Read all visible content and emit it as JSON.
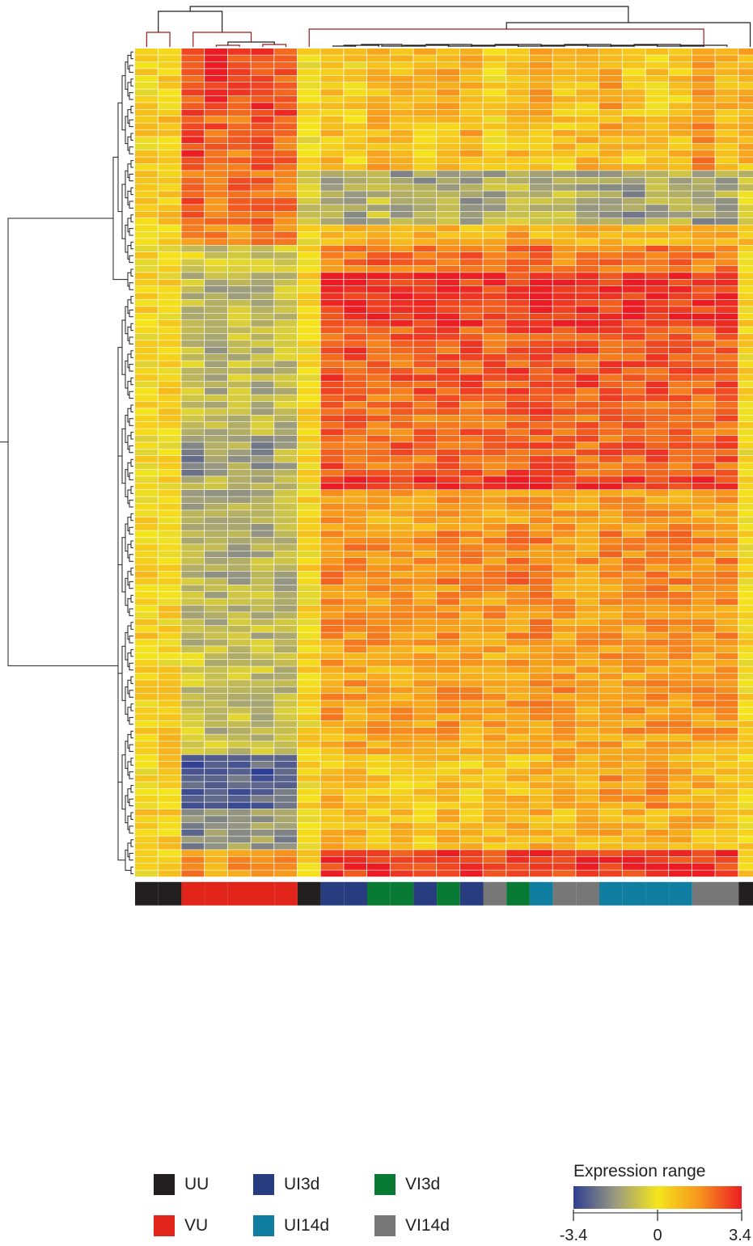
{
  "chart_data": {
    "type": "heatmap",
    "title": "",
    "colorbar": {
      "title": "Expression range",
      "min": -3.4,
      "mid": 0,
      "max": 3.4,
      "ticks": [
        "-3.4",
        "0",
        "3.4"
      ],
      "colors": [
        "#2f3f93",
        "#9a9a80",
        "#f5e51c",
        "#f7941d",
        "#ec1c24"
      ]
    },
    "row_dendrogram": true,
    "column_dendrogram": true,
    "groups": [
      {
        "label": "UU",
        "color": "#231f20"
      },
      {
        "label": "VU",
        "color": "#e1251b"
      },
      {
        "label": "UI3d",
        "color": "#283c80"
      },
      {
        "label": "UI14d",
        "color": "#0f7ea0"
      },
      {
        "label": "VI3d",
        "color": "#087a33"
      },
      {
        "label": "VI14d",
        "color": "#777777"
      }
    ],
    "column_groups": [
      "UU",
      "UU",
      "VU",
      "VU",
      "VU",
      "VU",
      "VU",
      "UU",
      "UI3d",
      "UI3d",
      "VI3d",
      "VI3d",
      "UI3d",
      "VI3d",
      "UI3d",
      "VI14d",
      "VI3d",
      "UI14d",
      "VI14d",
      "VI14d",
      "UI14d",
      "UI14d",
      "UI14d",
      "UI14d",
      "VI14d",
      "VI14d",
      "UU"
    ],
    "row_blocks": [
      {
        "rows": 10,
        "values": [
          0.2,
          0.5,
          2.6,
          3.0,
          2.8,
          3.0,
          2.7,
          0.1,
          0.6,
          0.4,
          1.0,
          0.8,
          1.0,
          1.1,
          1.0,
          0.4,
          0.9,
          1.2,
          0.6,
          0.8,
          1.4,
          0.6,
          0.5,
          0.7,
          1.6,
          1.1,
          1.0
        ]
      },
      {
        "rows": 8,
        "values": [
          0.4,
          0.7,
          2.8,
          2.4,
          2.1,
          2.7,
          2.2,
          0.0,
          0.8,
          0.5,
          1.2,
          0.9,
          0.7,
          0.9,
          1.1,
          0.3,
          0.9,
          1.0,
          0.8,
          1.0,
          1.2,
          0.7,
          0.6,
          0.9,
          1.8,
          0.9,
          0.9
        ]
      },
      {
        "rows": 8,
        "values": [
          0.3,
          0.8,
          2.4,
          2.1,
          2.3,
          2.2,
          2.1,
          -0.8,
          -1.4,
          -1.5,
          -1.0,
          -1.5,
          -1.5,
          -1.1,
          -1.7,
          -1.3,
          -0.9,
          -1.3,
          -1.1,
          -1.4,
          -1.6,
          -1.8,
          -1.3,
          -1.2,
          -1.6,
          -1.4,
          -0.7
        ]
      },
      {
        "rows": 3,
        "values": [
          0.2,
          0.6,
          2.0,
          1.8,
          1.7,
          1.9,
          1.8,
          0.1,
          1.1,
          1.3,
          1.2,
          1.3,
          1.0,
          1.2,
          1.0,
          1.2,
          1.4,
          1.1,
          1.0,
          1.2,
          1.3,
          1.1,
          1.0,
          1.3,
          1.2,
          1.1,
          0.9
        ]
      },
      {
        "rows": 4,
        "values": [
          0.3,
          0.2,
          -0.4,
          -0.8,
          -0.7,
          -0.9,
          -0.6,
          0.2,
          2.1,
          2.2,
          2.3,
          2.1,
          2.2,
          2.2,
          2.2,
          2.1,
          2.2,
          2.3,
          2.0,
          2.2,
          2.2,
          2.1,
          2.2,
          2.1,
          2.0,
          2.1,
          0.3
        ]
      },
      {
        "rows": 8,
        "values": [
          0.3,
          0.3,
          -0.9,
          -1.3,
          -1.0,
          -1.3,
          -1.0,
          0.2,
          3.1,
          3.1,
          3.0,
          3.0,
          2.9,
          3.1,
          3.0,
          3.0,
          3.0,
          3.1,
          3.0,
          3.0,
          3.1,
          3.1,
          3.1,
          3.1,
          3.1,
          3.0,
          0.3
        ]
      },
      {
        "rows": 10,
        "values": [
          0.2,
          0.4,
          -0.7,
          -1.2,
          -0.9,
          -1.2,
          -0.9,
          0.2,
          2.6,
          2.6,
          2.5,
          2.4,
          2.4,
          2.5,
          2.5,
          2.4,
          2.6,
          2.7,
          2.7,
          2.6,
          2.6,
          2.6,
          2.7,
          2.6,
          2.4,
          2.5,
          0.3
        ]
      },
      {
        "rows": 6,
        "values": [
          0.3,
          0.5,
          -0.8,
          -1.1,
          -1.1,
          -1.1,
          -1.0,
          0.2,
          2.4,
          2.5,
          2.3,
          2.3,
          2.2,
          2.4,
          2.3,
          2.2,
          2.3,
          2.5,
          2.3,
          2.2,
          2.4,
          2.3,
          2.4,
          2.4,
          2.2,
          2.3,
          0.2
        ]
      },
      {
        "rows": 6,
        "values": [
          0.1,
          0.3,
          -2.0,
          -1.7,
          -1.5,
          -1.8,
          -1.3,
          0.1,
          2.5,
          2.4,
          2.3,
          2.4,
          2.2,
          2.5,
          2.4,
          2.3,
          2.6,
          2.5,
          2.4,
          2.3,
          2.4,
          2.4,
          2.5,
          2.4,
          2.3,
          2.4,
          0.2
        ]
      },
      {
        "rows": 2,
        "values": [
          0.2,
          0.3,
          -1.2,
          -1.3,
          -1.4,
          -1.2,
          -1.1,
          0.2,
          3.2,
          3.2,
          3.1,
          3.0,
          3.1,
          3.2,
          3.0,
          3.1,
          3.2,
          3.1,
          3.2,
          3.2,
          3.1,
          3.2,
          3.1,
          3.2,
          3.1,
          3.0,
          0.2
        ]
      },
      {
        "rows": 6,
        "values": [
          0.3,
          0.4,
          -1.5,
          -1.3,
          -1.4,
          -1.6,
          -1.2,
          0.2,
          1.6,
          1.5,
          1.3,
          1.4,
          1.2,
          1.5,
          1.5,
          1.3,
          1.5,
          1.6,
          1.4,
          1.4,
          1.5,
          1.5,
          1.6,
          1.5,
          1.4,
          1.5,
          0.2
        ]
      },
      {
        "rows": 8,
        "values": [
          0.3,
          0.2,
          -0.8,
          -1.3,
          -1.6,
          -1.2,
          -1.2,
          0.2,
          1.8,
          1.9,
          1.7,
          1.8,
          1.6,
          1.9,
          1.8,
          1.8,
          2.0,
          1.9,
          1.7,
          1.6,
          1.9,
          1.8,
          1.9,
          1.8,
          1.8,
          1.8,
          0.2
        ]
      },
      {
        "rows": 9,
        "values": [
          0.4,
          0.3,
          -1.0,
          -1.2,
          -1.2,
          -1.0,
          -1.1,
          0.2,
          1.6,
          1.6,
          1.5,
          1.6,
          1.5,
          1.7,
          1.6,
          1.5,
          1.6,
          1.7,
          1.5,
          1.6,
          1.6,
          1.5,
          1.7,
          1.6,
          1.6,
          1.6,
          0.3
        ]
      },
      {
        "rows": 5,
        "values": [
          0.3,
          0.3,
          -0.7,
          -1.0,
          -0.8,
          -0.9,
          -1.1,
          0.2,
          1.3,
          1.3,
          1.1,
          1.2,
          1.1,
          1.3,
          1.4,
          1.2,
          1.3,
          1.4,
          1.4,
          1.3,
          1.5,
          1.3,
          1.4,
          1.4,
          1.3,
          1.3,
          0.3
        ]
      },
      {
        "rows": 8,
        "values": [
          0.3,
          0.4,
          -0.8,
          -1.0,
          -0.9,
          -1.0,
          -1.0,
          0.2,
          1.5,
          1.5,
          1.4,
          1.4,
          1.3,
          1.5,
          1.5,
          1.4,
          1.5,
          1.6,
          1.6,
          1.5,
          1.6,
          1.5,
          1.6,
          1.6,
          1.5,
          1.5,
          0.3
        ]
      },
      {
        "rows": 3,
        "values": [
          0.3,
          0.6,
          -0.5,
          -0.9,
          -0.7,
          -0.8,
          -0.6,
          0.2,
          1.2,
          1.3,
          1.1,
          1.2,
          1.0,
          1.2,
          1.2,
          1.1,
          1.3,
          1.3,
          1.2,
          1.3,
          1.2,
          1.2,
          1.3,
          1.2,
          1.2,
          1.2,
          0.3
        ]
      },
      {
        "rows": 8,
        "values": [
          0.2,
          0.4,
          -2.7,
          -2.9,
          -2.9,
          -2.8,
          -2.6,
          0.2,
          0.9,
          0.8,
          0.7,
          0.6,
          0.7,
          0.9,
          0.5,
          0.8,
          0.9,
          1.0,
          1.2,
          1.2,
          1.5,
          1.4,
          1.7,
          1.3,
          1.1,
          1.0,
          0.3
        ]
      },
      {
        "rows": 6,
        "values": [
          0.4,
          0.5,
          -2.2,
          -1.5,
          -1.5,
          -1.6,
          -1.9,
          0.2,
          0.9,
          1.0,
          0.8,
          0.8,
          0.7,
          0.9,
          0.9,
          0.8,
          1.0,
          1.1,
          1.0,
          1.0,
          1.2,
          1.1,
          1.1,
          1.1,
          1.0,
          1.0,
          0.3
        ]
      },
      {
        "rows": 4,
        "values": [
          0.3,
          0.6,
          1.7,
          1.3,
          1.5,
          1.4,
          1.6,
          0.3,
          3.0,
          3.0,
          3.0,
          3.0,
          3.0,
          3.0,
          3.1,
          3.0,
          3.0,
          3.0,
          3.0,
          3.1,
          3.0,
          3.1,
          3.0,
          3.0,
          3.1,
          3.0,
          0.3
        ]
      }
    ]
  }
}
